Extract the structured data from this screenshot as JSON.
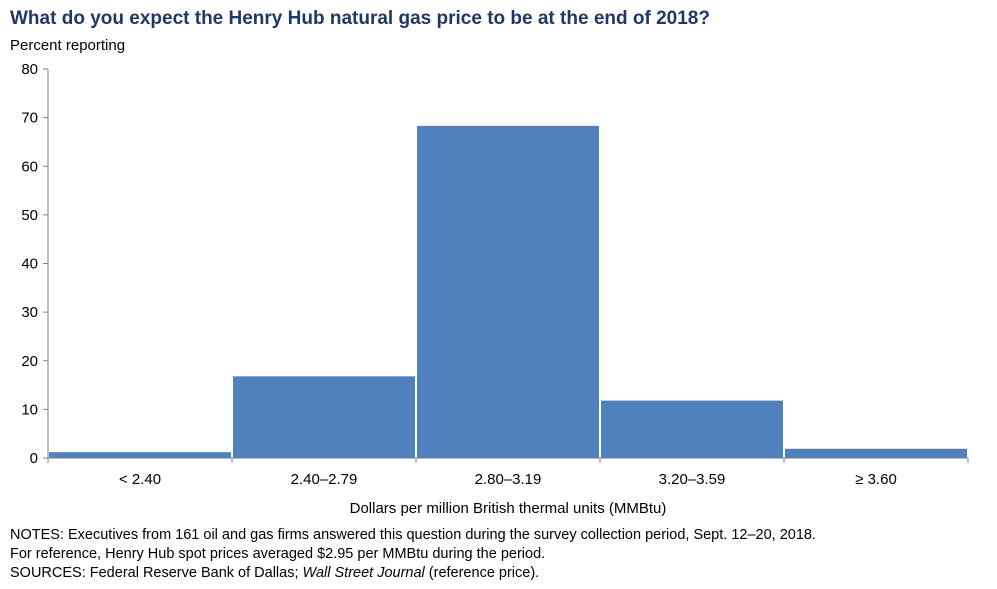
{
  "header": {
    "title": "What do you expect the Henry Hub natural gas price to be at the end of 2018?",
    "subtitle": "Percent reporting"
  },
  "chart_data": {
    "type": "bar",
    "title": "What do you expect the Henry Hub natural gas price to be at the end of 2018?",
    "ylabel": "Percent reporting",
    "xlabel": "Dollars per million British thermal units (MMBtu)",
    "categories": [
      "< 2.40",
      "2.40–2.79",
      "2.80–3.19",
      "3.20–3.59",
      "≥ 3.60"
    ],
    "values": [
      1.2,
      16.8,
      68.3,
      11.8,
      1.9
    ],
    "ylim": [
      0,
      80
    ],
    "yticks": [
      0,
      10,
      20,
      30,
      40,
      50,
      60,
      70,
      80
    ],
    "grid": false,
    "bar_color": "#4f81bd"
  },
  "notes": {
    "line1": "NOTES: Executives from 161 oil and gas firms answered this question during the survey collection period, Sept. 12–20, 2018.",
    "line2": "For reference, Henry Hub spot prices averaged $2.95 per MMBtu during the period.",
    "line3_prefix": "SOURCES: Federal Reserve Bank of Dallas; ",
    "line3_italic": "Wall Street Journal",
    "line3_suffix": " (reference price)."
  }
}
